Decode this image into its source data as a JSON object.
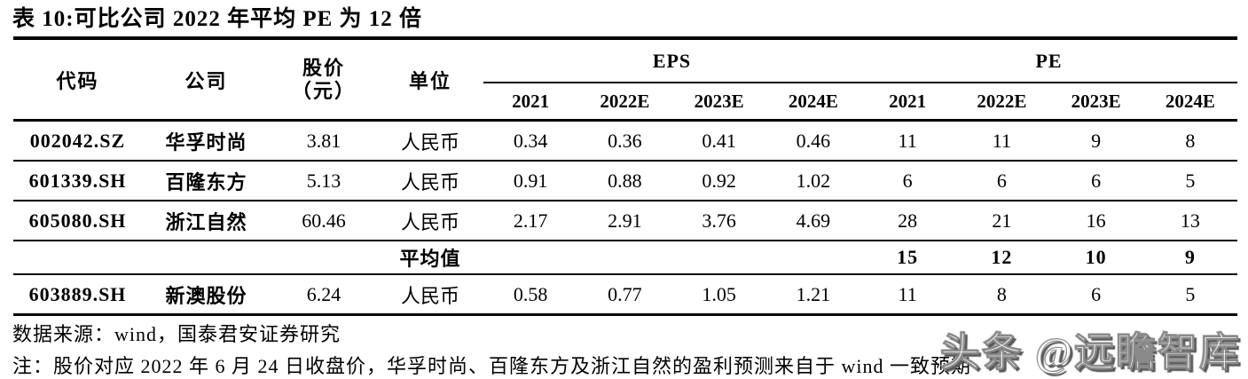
{
  "title": "表 10:可比公司 2022 年平均 PE 为 12 倍",
  "table": {
    "headers": {
      "code": "代码",
      "company": "公司",
      "price_line1": "股价",
      "price_line2": "（元）",
      "unit": "单位",
      "eps_group": "EPS",
      "pe_group": "PE",
      "eps_years": [
        "2021",
        "2022E",
        "2023E",
        "2024E"
      ],
      "pe_years": [
        "2021",
        "2022E",
        "2023E",
        "2024E"
      ]
    },
    "rows": [
      {
        "code": "002042.SZ",
        "company": "华孚时尚",
        "price": "3.81",
        "unit": "人民币",
        "eps": [
          "0.34",
          "0.36",
          "0.41",
          "0.46"
        ],
        "pe": [
          "11",
          "11",
          "9",
          "8"
        ]
      },
      {
        "code": "601339.SH",
        "company": "百隆东方",
        "price": "5.13",
        "unit": "人民币",
        "eps": [
          "0.91",
          "0.88",
          "0.92",
          "1.02"
        ],
        "pe": [
          "6",
          "6",
          "6",
          "5"
        ]
      },
      {
        "code": "605080.SH",
        "company": "浙江自然",
        "price": "60.46",
        "unit": "人民币",
        "eps": [
          "2.17",
          "2.91",
          "3.76",
          "4.69"
        ],
        "pe": [
          "28",
          "21",
          "16",
          "13"
        ]
      }
    ],
    "average_row": {
      "label": "平均值",
      "pe": [
        "15",
        "12",
        "10",
        "9"
      ]
    },
    "last_row": {
      "code": "603889.SH",
      "company": "新澳股份",
      "price": "6.24",
      "unit": "人民币",
      "eps": [
        "0.58",
        "0.77",
        "1.05",
        "1.21"
      ],
      "pe": [
        "11",
        "8",
        "6",
        "5"
      ]
    }
  },
  "source": "数据来源：wind，国泰君安证券研究",
  "note": "注：股价对应 2022 年 6 月 24 日收盘价，华孚时尚、百隆东方及浙江自然的盈利预测来自于 wind 一致预期",
  "watermark": "头条 @远瞻智库"
}
